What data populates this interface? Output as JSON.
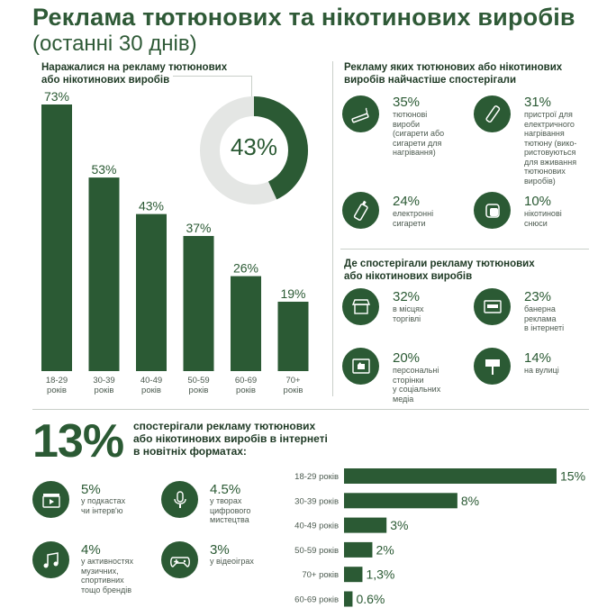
{
  "title": "Реклама тютюнових та нікотинових виробів",
  "subtitle": "(останні 30 днів)",
  "left_section": {
    "heading_line1": "Наражалися на рекламу тютюнових",
    "heading_line2": "або нікотинових виробів",
    "donut_label": "43%",
    "donut_value": 43
  },
  "products_section": {
    "heading_line1": "Рекламу яких тютюнових або нікотинових",
    "heading_line2": "виробів найчастіше спостерігали",
    "items": [
      {
        "pct": "35%",
        "desc": [
          "тютюнові",
          "вироби",
          "(сигарети або",
          "сигарети для",
          "нагрівання)"
        ],
        "icon": "cigarette-icon"
      },
      {
        "pct": "31%",
        "desc": [
          "пристрої для",
          "електричного",
          "нагрівання",
          "тютюну (вико-",
          "ристовуються",
          "для вживання",
          "тютюнових",
          "виробів)"
        ],
        "icon": "heated-tobacco-device-icon"
      },
      {
        "pct": "24%",
        "desc": [
          "електронні",
          "сигарети"
        ],
        "icon": "e-cigarette-icon"
      },
      {
        "pct": "10%",
        "desc": [
          "нікотинові",
          "снюси"
        ],
        "icon": "snus-pouch-icon"
      }
    ]
  },
  "places_section": {
    "heading_line1": "Де спостерігали рекламу тютюнових",
    "heading_line2": "або нікотинових виробів",
    "items": [
      {
        "pct": "32%",
        "desc": [
          "в місцях",
          "торгівлі"
        ],
        "icon": "store-icon"
      },
      {
        "pct": "23%",
        "desc": [
          "банерна",
          "реклама",
          "в інтернеті"
        ],
        "icon": "web-banner-icon"
      },
      {
        "pct": "20%",
        "desc": [
          "персональні",
          "сторінки",
          "у соціальних",
          "медіа"
        ],
        "icon": "social-like-icon"
      },
      {
        "pct": "14%",
        "desc": [
          "на вулиці"
        ],
        "icon": "billboard-icon"
      }
    ]
  },
  "bottom_section": {
    "big_pct": "13%",
    "text_line1": "спостерігали рекламу тютюнових",
    "text_line2": "або нікотинових виробів в інтернеті",
    "text_line3": "в новітніх форматах:",
    "formats": [
      {
        "pct": "5%",
        "desc": [
          "у подкастах",
          "чи інтерв'ю"
        ],
        "icon": "video-clapper-icon"
      },
      {
        "pct": "4.5%",
        "desc": [
          "у творах",
          "цифрового",
          "мистецтва"
        ],
        "icon": "microphone-icon"
      },
      {
        "pct": "4%",
        "desc": [
          "у активностях",
          "музичних,",
          "спортивних",
          "тощо брендів"
        ],
        "icon": "music-notes-icon"
      },
      {
        "pct": "3%",
        "desc": [
          "у відеоіграх"
        ],
        "icon": "gamepad-icon"
      }
    ]
  },
  "chart_data": [
    {
      "type": "bar",
      "categories": [
        [
          "18-29",
          "років"
        ],
        [
          "30-39",
          "років"
        ],
        [
          "40-49",
          "років"
        ],
        [
          "50-59",
          "років"
        ],
        [
          "60-69",
          "років"
        ],
        [
          "70+",
          "років"
        ]
      ],
      "values": [
        73,
        53,
        43,
        37,
        26,
        19
      ],
      "labels": [
        "73%",
        "53%",
        "43%",
        "37%",
        "26%",
        "19%"
      ],
      "ylim": [
        0,
        73
      ],
      "color": "#2b5a34"
    },
    {
      "type": "bar",
      "orientation": "horizontal",
      "categories": [
        "18-29 років",
        "30-39 років",
        "40-49 років",
        "50-59 років",
        "70+ років",
        "60-69 років"
      ],
      "values": [
        15,
        8,
        3,
        2,
        1.3,
        0.6
      ],
      "labels": [
        "15%",
        "8%",
        "3%",
        "2%",
        "1,3%",
        "0.6%"
      ],
      "xlim": [
        0,
        15
      ],
      "color": "#2b5a34"
    }
  ]
}
